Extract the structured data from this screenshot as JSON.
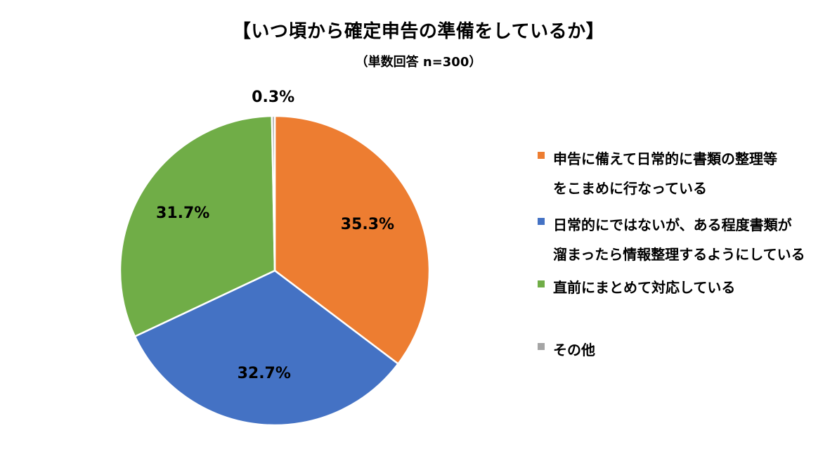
{
  "title": "【いつ頃から確定申告の準備をしているか】",
  "subtitle": "（単数回答 n=300）",
  "chart_data": {
    "type": "pie",
    "start_angle_deg": 0,
    "direction": "clockwise",
    "legend_position": "right",
    "slices": [
      {
        "label": "申告に備えて日常的に書類の整理等\nをこまめに行なっている",
        "value": 35.3,
        "display": "35.3%",
        "color": "#ED7D31"
      },
      {
        "label": "日常的にではないが、ある程度書類が\n溜まったら情報整理するようにしている",
        "value": 32.7,
        "display": "32.7%",
        "color": "#4472C4"
      },
      {
        "label": "直前にまとめて対応している",
        "value": 31.7,
        "display": "31.7%",
        "color": "#70AD47"
      },
      {
        "label": "その他",
        "value": 0.3,
        "display": "0.3%",
        "color": "#A5A5A5"
      }
    ]
  }
}
